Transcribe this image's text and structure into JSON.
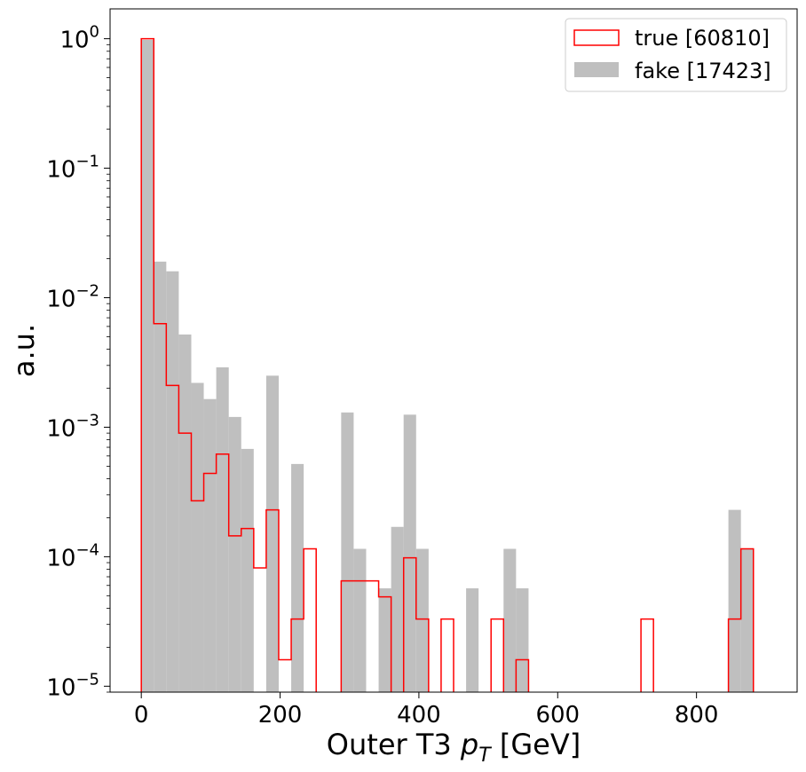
{
  "chart_data": {
    "type": "bar",
    "histogram": true,
    "xlabel": "Outer T3 p_T [GeV]",
    "xlabel_parts": {
      "prefix": "Outer T3 ",
      "var_main": "p",
      "var_sub": "T",
      "suffix": " [GeV]"
    },
    "ylabel": "a.u.",
    "xlim": [
      -45,
      945
    ],
    "ylim": [
      9e-06,
      1.7
    ],
    "yscale": "log",
    "x_ticks": [
      0,
      200,
      400,
      600,
      800
    ],
    "x_tick_labels": [
      "0",
      "200",
      "400",
      "600",
      "800"
    ],
    "y_ticks": [
      1e-05,
      0.0001,
      0.001,
      0.01,
      0.1,
      1
    ],
    "y_tick_labels": [
      {
        "base": "10",
        "exp": "−5"
      },
      {
        "base": "10",
        "exp": "−4"
      },
      {
        "base": "10",
        "exp": "−3"
      },
      {
        "base": "10",
        "exp": "−2"
      },
      {
        "base": "10",
        "exp": "−1"
      },
      {
        "base": "10",
        "exp": "0"
      }
    ],
    "bin_edges": [
      0,
      18,
      36,
      54,
      72,
      90,
      108,
      126,
      144,
      162,
      180,
      198,
      216,
      234,
      252,
      270,
      288,
      306,
      324,
      342,
      360,
      378,
      396,
      414,
      432,
      450,
      468,
      486,
      504,
      522,
      540,
      558,
      576,
      594,
      612,
      630,
      648,
      666,
      684,
      702,
      720,
      738,
      756,
      774,
      792,
      810,
      828,
      846,
      864,
      882,
      900
    ],
    "legend_position": "top-right",
    "grid": false,
    "series": [
      {
        "name": "fake [17423]",
        "style": "filled",
        "color": "#bfbfbf",
        "values": [
          0.98,
          0.019,
          0.016,
          0.0052,
          0.0022,
          0.00165,
          0.0029,
          0.0012,
          0.00068,
          0,
          0.0025,
          0,
          0.00052,
          0,
          0,
          0,
          0.0013,
          0.000115,
          0,
          5.7e-05,
          0.00017,
          0.00125,
          0.000115,
          0,
          0,
          0,
          5.7e-05,
          0,
          0,
          0.000115,
          5.7e-05,
          0,
          0,
          0,
          0,
          0,
          0,
          0,
          0,
          0,
          0,
          0,
          0,
          0,
          0,
          0,
          0,
          0.00023,
          0.000115,
          0
        ]
      },
      {
        "name": "true [60810]",
        "style": "step",
        "color": "#ff0000",
        "values": [
          1.0,
          0.0063,
          0.0021,
          0.0009,
          0.00027,
          0.00044,
          0.00062,
          0.000145,
          0.000165,
          8.2e-05,
          0.00023,
          1.6e-05,
          3.3e-05,
          0.000115,
          0,
          0,
          6.5e-05,
          6.5e-05,
          6.5e-05,
          4.9e-05,
          0,
          9.8e-05,
          3.3e-05,
          0,
          3.3e-05,
          0,
          0,
          0,
          3.3e-05,
          0,
          1.6e-05,
          0,
          0,
          0,
          0,
          0,
          0,
          0,
          0,
          0,
          3.3e-05,
          0,
          0,
          0,
          0,
          0,
          0,
          3.3e-05,
          0.000115,
          0
        ]
      }
    ]
  }
}
